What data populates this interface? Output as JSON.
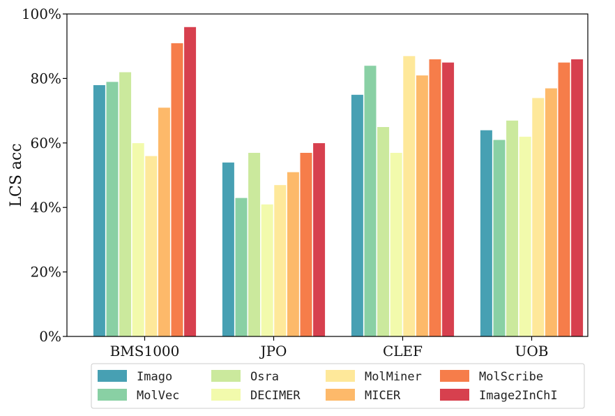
{
  "chart_data": {
    "type": "bar",
    "title": "",
    "xlabel": "",
    "ylabel": "LCS acc",
    "ylim": [
      0,
      100
    ],
    "yticks": [
      "0%",
      "20%",
      "40%",
      "60%",
      "80%",
      "100%"
    ],
    "categories": [
      "BMS1000",
      "JPO",
      "CLEF",
      "UOB"
    ],
    "series": [
      {
        "name": "Imago",
        "color": "#47a0b3",
        "values": [
          78,
          54,
          75,
          64
        ]
      },
      {
        "name": "MolVec",
        "color": "#89d0a4",
        "values": [
          79,
          43,
          84,
          61
        ]
      },
      {
        "name": "Osra",
        "color": "#cbe99d",
        "values": [
          82,
          57,
          65,
          67
        ]
      },
      {
        "name": "DECIMER",
        "color": "#f2faac",
        "values": [
          60,
          41,
          57,
          62
        ]
      },
      {
        "name": "MolMiner",
        "color": "#fee89a",
        "values": [
          56,
          47,
          87,
          74
        ]
      },
      {
        "name": "MICER",
        "color": "#fdb96a",
        "values": [
          71,
          51,
          81,
          77
        ]
      },
      {
        "name": "MolScribe",
        "color": "#f67d4a",
        "values": [
          91,
          57,
          86,
          85
        ]
      },
      {
        "name": "Image2InChI",
        "color": "#d7404e",
        "values": [
          96,
          60,
          85,
          86
        ]
      }
    ],
    "legend_position": "bottom",
    "legend_columns": 4
  }
}
